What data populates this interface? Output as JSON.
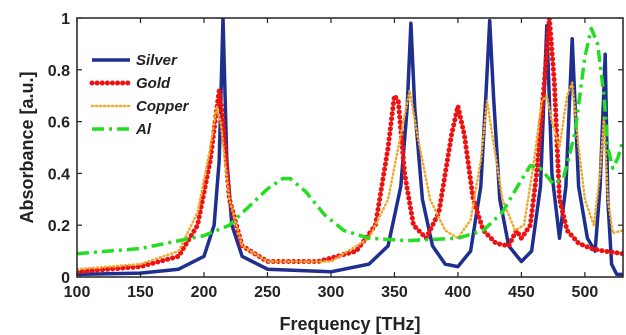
{
  "chart_data": {
    "type": "line",
    "title": "",
    "xlabel": "Frequency [THz]",
    "ylabel": "Absorbance [a.u.]",
    "xlim": [
      100,
      530
    ],
    "ylim": [
      0,
      1
    ],
    "xticks": [
      100,
      150,
      200,
      250,
      300,
      350,
      400,
      450,
      500
    ],
    "yticks": [
      0,
      0.2,
      0.4,
      0.6,
      0.8,
      1
    ],
    "grid": false,
    "legend_position": "top-left",
    "series": [
      {
        "name": "Silver",
        "style": "solid",
        "color": "#1f2f8f",
        "points": [
          [
            100,
            0.01
          ],
          [
            150,
            0.015
          ],
          [
            180,
            0.03
          ],
          [
            200,
            0.08
          ],
          [
            208,
            0.2
          ],
          [
            212,
            0.45
          ],
          [
            215,
            1.0
          ],
          [
            218,
            0.45
          ],
          [
            222,
            0.2
          ],
          [
            230,
            0.08
          ],
          [
            250,
            0.03
          ],
          [
            300,
            0.02
          ],
          [
            330,
            0.05
          ],
          [
            345,
            0.12
          ],
          [
            355,
            0.35
          ],
          [
            360,
            0.65
          ],
          [
            363,
            0.98
          ],
          [
            366,
            0.65
          ],
          [
            372,
            0.3
          ],
          [
            380,
            0.12
          ],
          [
            390,
            0.05
          ],
          [
            400,
            0.04
          ],
          [
            410,
            0.1
          ],
          [
            418,
            0.35
          ],
          [
            422,
            0.7
          ],
          [
            425,
            0.99
          ],
          [
            428,
            0.7
          ],
          [
            433,
            0.3
          ],
          [
            440,
            0.12
          ],
          [
            450,
            0.06
          ],
          [
            458,
            0.1
          ],
          [
            465,
            0.35
          ],
          [
            470,
            0.97
          ],
          [
            474,
            0.4
          ],
          [
            480,
            0.15
          ],
          [
            485,
            0.35
          ],
          [
            490,
            0.92
          ],
          [
            495,
            0.35
          ],
          [
            502,
            0.15
          ],
          [
            508,
            0.1
          ],
          [
            512,
            0.35
          ],
          [
            516,
            0.86
          ],
          [
            518,
            0.3
          ],
          [
            521,
            0.05
          ],
          [
            525,
            0.01
          ],
          [
            530,
            0.01
          ]
        ]
      },
      {
        "name": "Gold",
        "style": "dotted",
        "color": "#ee1111",
        "points": [
          [
            100,
            0.02
          ],
          [
            150,
            0.04
          ],
          [
            180,
            0.08
          ],
          [
            195,
            0.2
          ],
          [
            205,
            0.45
          ],
          [
            210,
            0.65
          ],
          [
            212,
            0.72
          ],
          [
            215,
            0.6
          ],
          [
            220,
            0.3
          ],
          [
            230,
            0.12
          ],
          [
            250,
            0.06
          ],
          [
            290,
            0.06
          ],
          [
            320,
            0.1
          ],
          [
            335,
            0.2
          ],
          [
            345,
            0.5
          ],
          [
            350,
            0.7
          ],
          [
            353,
            0.68
          ],
          [
            358,
            0.4
          ],
          [
            365,
            0.2
          ],
          [
            375,
            0.15
          ],
          [
            385,
            0.25
          ],
          [
            395,
            0.55
          ],
          [
            400,
            0.66
          ],
          [
            405,
            0.55
          ],
          [
            412,
            0.3
          ],
          [
            420,
            0.18
          ],
          [
            430,
            0.13
          ],
          [
            440,
            0.12
          ],
          [
            446,
            0.18
          ],
          [
            450,
            0.15
          ],
          [
            457,
            0.2
          ],
          [
            462,
            0.4
          ],
          [
            468,
            0.75
          ],
          [
            472,
            1.0
          ],
          [
            476,
            0.75
          ],
          [
            480,
            0.3
          ],
          [
            486,
            0.18
          ],
          [
            495,
            0.13
          ],
          [
            505,
            0.11
          ],
          [
            515,
            0.1
          ],
          [
            530,
            0.09
          ]
        ]
      },
      {
        "name": "Copper",
        "style": "dotted-markers",
        "color": "#f0a830",
        "points": [
          [
            100,
            0.03
          ],
          [
            150,
            0.05
          ],
          [
            180,
            0.1
          ],
          [
            195,
            0.25
          ],
          [
            205,
            0.5
          ],
          [
            210,
            0.66
          ],
          [
            213,
            0.6
          ],
          [
            220,
            0.3
          ],
          [
            230,
            0.12
          ],
          [
            250,
            0.06
          ],
          [
            300,
            0.06
          ],
          [
            330,
            0.15
          ],
          [
            345,
            0.3
          ],
          [
            355,
            0.55
          ],
          [
            362,
            0.72
          ],
          [
            368,
            0.55
          ],
          [
            378,
            0.3
          ],
          [
            390,
            0.18
          ],
          [
            400,
            0.15
          ],
          [
            410,
            0.22
          ],
          [
            418,
            0.45
          ],
          [
            423,
            0.68
          ],
          [
            427,
            0.55
          ],
          [
            435,
            0.3
          ],
          [
            445,
            0.18
          ],
          [
            452,
            0.2
          ],
          [
            460,
            0.45
          ],
          [
            466,
            0.68
          ],
          [
            470,
            0.7
          ],
          [
            474,
            0.6
          ],
          [
            480,
            0.5
          ],
          [
            486,
            0.7
          ],
          [
            490,
            0.75
          ],
          [
            495,
            0.5
          ],
          [
            500,
            0.3
          ],
          [
            507,
            0.2
          ],
          [
            512,
            0.4
          ],
          [
            515,
            0.62
          ],
          [
            518,
            0.3
          ],
          [
            522,
            0.17
          ],
          [
            530,
            0.18
          ]
        ]
      },
      {
        "name": "Al",
        "style": "dashdot",
        "color": "#22dd22",
        "points": [
          [
            100,
            0.09
          ],
          [
            150,
            0.11
          ],
          [
            200,
            0.16
          ],
          [
            220,
            0.2
          ],
          [
            235,
            0.27
          ],
          [
            250,
            0.34
          ],
          [
            262,
            0.38
          ],
          [
            268,
            0.38
          ],
          [
            280,
            0.33
          ],
          [
            295,
            0.24
          ],
          [
            310,
            0.18
          ],
          [
            330,
            0.15
          ],
          [
            360,
            0.14
          ],
          [
            400,
            0.15
          ],
          [
            420,
            0.18
          ],
          [
            435,
            0.25
          ],
          [
            447,
            0.35
          ],
          [
            457,
            0.43
          ],
          [
            465,
            0.42
          ],
          [
            475,
            0.36
          ],
          [
            483,
            0.38
          ],
          [
            492,
            0.55
          ],
          [
            500,
            0.85
          ],
          [
            505,
            0.96
          ],
          [
            510,
            0.9
          ],
          [
            515,
            0.7
          ],
          [
            518,
            0.5
          ],
          [
            522,
            0.42
          ],
          [
            526,
            0.46
          ],
          [
            530,
            0.53
          ]
        ]
      }
    ]
  }
}
